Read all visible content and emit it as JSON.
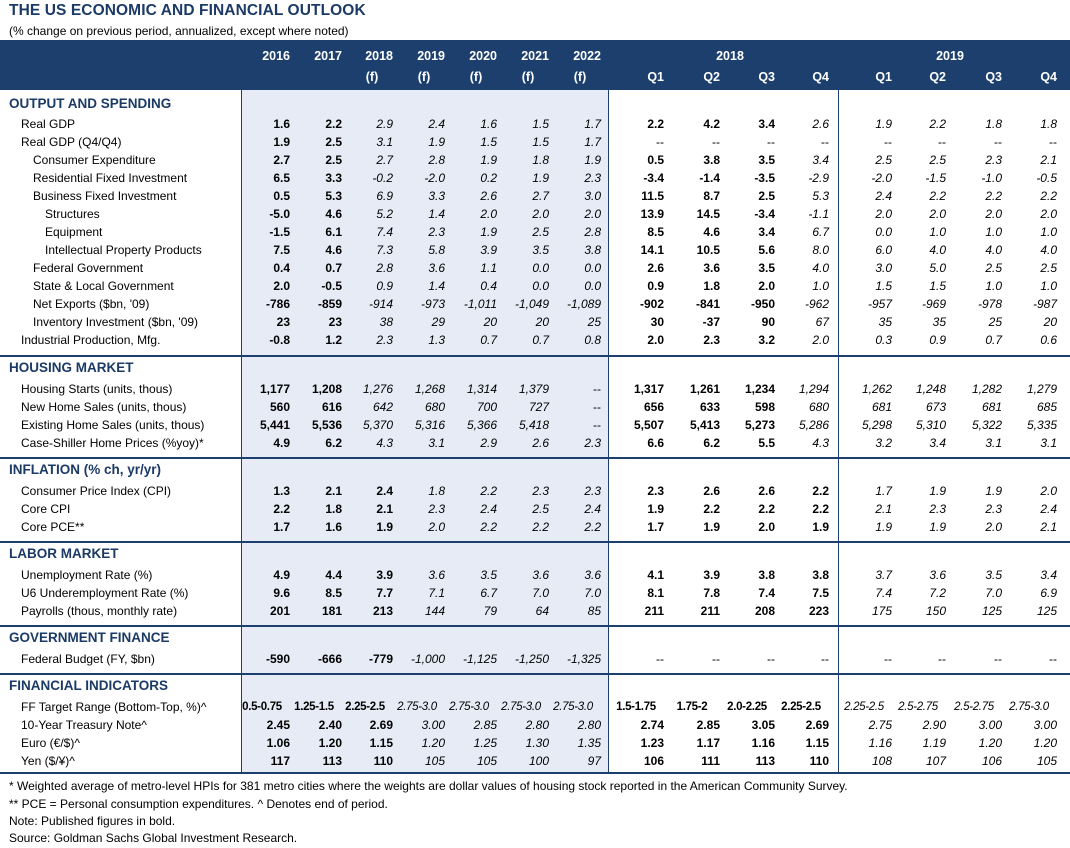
{
  "title": "THE US ECONOMIC AND FINANCIAL OUTLOOK",
  "subtitle": "(% change on previous period, annualized, except where noted)",
  "header": {
    "year_cols": [
      {
        "y": "2016",
        "f": ""
      },
      {
        "y": "2017",
        "f": ""
      },
      {
        "y": "2018",
        "f": "(f)"
      },
      {
        "y": "2019",
        "f": "(f)"
      },
      {
        "y": "2020",
        "f": "(f)"
      },
      {
        "y": "2021",
        "f": "(f)"
      },
      {
        "y": "2022",
        "f": "(f)"
      }
    ],
    "year_2018": "2018",
    "year_2019": "2019",
    "quarters": [
      "Q1",
      "Q2",
      "Q3",
      "Q4",
      "Q1",
      "Q2",
      "Q3",
      "Q4"
    ]
  },
  "sections": [
    {
      "title": "OUTPUT AND SPENDING",
      "rows": [
        {
          "label": "Real GDP",
          "indent": 1,
          "v": [
            "1.6",
            "2.2",
            "2.9",
            "2.4",
            "1.6",
            "1.5",
            "1.7",
            "2.2",
            "4.2",
            "3.4",
            "2.6",
            "1.9",
            "2.2",
            "1.8",
            "1.8"
          ]
        },
        {
          "label": "Real GDP (Q4/Q4)",
          "indent": 1,
          "v": [
            "1.9",
            "2.5",
            "3.1",
            "1.9",
            "1.5",
            "1.5",
            "1.7",
            "--",
            "--",
            "--",
            "--",
            "--",
            "--",
            "--",
            "--"
          ]
        },
        {
          "label": "Consumer Expenditure",
          "indent": 2,
          "v": [
            "2.7",
            "2.5",
            "2.7",
            "2.8",
            "1.9",
            "1.8",
            "1.9",
            "0.5",
            "3.8",
            "3.5",
            "3.4",
            "2.5",
            "2.5",
            "2.3",
            "2.1"
          ]
        },
        {
          "label": "Residential Fixed Investment",
          "indent": 2,
          "v": [
            "6.5",
            "3.3",
            "-0.2",
            "-2.0",
            "0.2",
            "1.9",
            "2.3",
            "-3.4",
            "-1.4",
            "-3.5",
            "-2.9",
            "-2.0",
            "-1.5",
            "-1.0",
            "-0.5"
          ]
        },
        {
          "label": "Business Fixed Investment",
          "indent": 2,
          "v": [
            "0.5",
            "5.3",
            "6.9",
            "3.3",
            "2.6",
            "2.7",
            "3.0",
            "11.5",
            "8.7",
            "2.5",
            "5.3",
            "2.4",
            "2.2",
            "2.2",
            "2.2"
          ]
        },
        {
          "label": "Structures",
          "indent": 3,
          "v": [
            "-5.0",
            "4.6",
            "5.2",
            "1.4",
            "2.0",
            "2.0",
            "2.0",
            "13.9",
            "14.5",
            "-3.4",
            "-1.1",
            "2.0",
            "2.0",
            "2.0",
            "2.0"
          ]
        },
        {
          "label": "Equipment",
          "indent": 3,
          "v": [
            "-1.5",
            "6.1",
            "7.4",
            "2.3",
            "1.9",
            "2.5",
            "2.8",
            "8.5",
            "4.6",
            "3.4",
            "6.7",
            "0.0",
            "1.0",
            "1.0",
            "1.0"
          ]
        },
        {
          "label": "Intellectual Property Products",
          "indent": 3,
          "v": [
            "7.5",
            "4.6",
            "7.3",
            "5.8",
            "3.9",
            "3.5",
            "3.8",
            "14.1",
            "10.5",
            "5.6",
            "8.0",
            "6.0",
            "4.0",
            "4.0",
            "4.0"
          ]
        },
        {
          "label": "Federal Government",
          "indent": 2,
          "v": [
            "0.4",
            "0.7",
            "2.8",
            "3.6",
            "1.1",
            "0.0",
            "0.0",
            "2.6",
            "3.6",
            "3.5",
            "4.0",
            "3.0",
            "5.0",
            "2.5",
            "2.5"
          ]
        },
        {
          "label": "State & Local Government",
          "indent": 2,
          "v": [
            "2.0",
            "-0.5",
            "0.9",
            "1.4",
            "0.4",
            "0.0",
            "0.0",
            "0.9",
            "1.8",
            "2.0",
            "1.0",
            "1.5",
            "1.5",
            "1.0",
            "1.0"
          ]
        },
        {
          "label": "Net Exports ($bn, '09)",
          "indent": 2,
          "v": [
            "-786",
            "-859",
            "-914",
            "-973",
            "-1,011",
            "-1,049",
            "-1,089",
            "-902",
            "-841",
            "-950",
            "-962",
            "-957",
            "-969",
            "-978",
            "-987"
          ]
        },
        {
          "label": "Inventory Investment ($bn, '09)",
          "indent": 2,
          "v": [
            "23",
            "23",
            "38",
            "29",
            "20",
            "20",
            "25",
            "30",
            "-37",
            "90",
            "67",
            "35",
            "35",
            "25",
            "20"
          ]
        },
        {
          "label": "Industrial Production, Mfg.",
          "indent": 1,
          "v": [
            "-0.8",
            "1.2",
            "2.3",
            "1.3",
            "0.7",
            "0.7",
            "0.8",
            "2.0",
            "2.3",
            "3.2",
            "2.0",
            "0.3",
            "0.9",
            "0.7",
            "0.6"
          ]
        }
      ]
    },
    {
      "title": "HOUSING MARKET",
      "rows": [
        {
          "label": "Housing Starts (units, thous)",
          "indent": 1,
          "v": [
            "1,177",
            "1,208",
            "1,276",
            "1,268",
            "1,314",
            "1,379",
            "--",
            "1,317",
            "1,261",
            "1,234",
            "1,294",
            "1,262",
            "1,248",
            "1,282",
            "1,279"
          ]
        },
        {
          "label": "New Home Sales (units, thous)",
          "indent": 1,
          "v": [
            "560",
            "616",
            "642",
            "680",
            "700",
            "727",
            "--",
            "656",
            "633",
            "598",
            "680",
            "681",
            "673",
            "681",
            "685"
          ]
        },
        {
          "label": "Existing Home Sales (units, thous)",
          "indent": 1,
          "v": [
            "5,441",
            "5,536",
            "5,370",
            "5,316",
            "5,366",
            "5,418",
            "--",
            "5,507",
            "5,413",
            "5,273",
            "5,286",
            "5,298",
            "5,310",
            "5,322",
            "5,335"
          ]
        },
        {
          "label": "Case-Shiller Home Prices (%yoy)*",
          "indent": 1,
          "v": [
            "4.9",
            "6.2",
            "4.3",
            "3.1",
            "2.9",
            "2.6",
            "2.3",
            "6.6",
            "6.2",
            "5.5",
            "4.3",
            "3.2",
            "3.4",
            "3.1",
            "3.1"
          ]
        }
      ]
    },
    {
      "title": "INFLATION (% ch, yr/yr)",
      "rows": [
        {
          "label": "Consumer Price Index (CPI)",
          "indent": 1,
          "v": [
            "1.3",
            "2.1",
            "2.4",
            "1.8",
            "2.2",
            "2.3",
            "2.3",
            "2.3",
            "2.6",
            "2.6",
            "2.2",
            "1.7",
            "1.9",
            "1.9",
            "2.0"
          ]
        },
        {
          "label": "Core CPI",
          "indent": 1,
          "v": [
            "2.2",
            "1.8",
            "2.1",
            "2.3",
            "2.4",
            "2.5",
            "2.4",
            "1.9",
            "2.2",
            "2.2",
            "2.2",
            "2.1",
            "2.3",
            "2.3",
            "2.4"
          ]
        },
        {
          "label": "Core PCE**",
          "indent": 1,
          "v": [
            "1.7",
            "1.6",
            "1.9",
            "2.0",
            "2.2",
            "2.2",
            "2.2",
            "1.7",
            "1.9",
            "2.0",
            "1.9",
            "1.9",
            "1.9",
            "2.0",
            "2.1"
          ]
        }
      ]
    },
    {
      "title": "LABOR MARKET",
      "rows": [
        {
          "label": "Unemployment Rate (%)",
          "indent": 1,
          "v": [
            "4.9",
            "4.4",
            "3.9",
            "3.6",
            "3.5",
            "3.6",
            "3.6",
            "4.1",
            "3.9",
            "3.8",
            "3.8",
            "3.7",
            "3.6",
            "3.5",
            "3.4"
          ]
        },
        {
          "label": "U6 Underemployment Rate (%)",
          "indent": 1,
          "v": [
            "9.6",
            "8.5",
            "7.7",
            "7.1",
            "6.7",
            "7.0",
            "7.0",
            "8.1",
            "7.8",
            "7.4",
            "7.5",
            "7.4",
            "7.2",
            "7.0",
            "6.9"
          ]
        },
        {
          "label": "Payrolls (thous, monthly rate)",
          "indent": 1,
          "v": [
            "201",
            "181",
            "213",
            "144",
            "79",
            "64",
            "85",
            "211",
            "211",
            "208",
            "223",
            "175",
            "150",
            "125",
            "125"
          ]
        }
      ]
    },
    {
      "title": "GOVERNMENT FINANCE",
      "rows": [
        {
          "label": "Federal Budget (FY, $bn)",
          "indent": 1,
          "v": [
            "-590",
            "-666",
            "-779",
            "-1,000",
            "-1,125",
            "-1,250",
            "-1,325",
            "--",
            "--",
            "--",
            "--",
            "--",
            "--",
            "--",
            "--"
          ]
        }
      ]
    },
    {
      "title": "FINANCIAL INDICATORS",
      "rows": [
        {
          "label": "FF Target Range (Bottom-Top, %)^",
          "indent": 1,
          "v": [
            "0.5-0.75",
            "1.25-1.5",
            "2.25-2.5",
            "2.75-3.0",
            "2.75-3.0",
            "2.75-3.0",
            "2.75-3.0",
            "1.5-1.75",
            "1.75-2",
            "2.0-2.25",
            "2.25-2.5",
            "2.25-2.5",
            "2.5-2.75",
            "2.5-2.75",
            "2.75-3.0"
          ]
        },
        {
          "label": "10-Year Treasury Note^",
          "indent": 1,
          "v": [
            "2.45",
            "2.40",
            "2.69",
            "3.00",
            "2.85",
            "2.80",
            "2.80",
            "2.74",
            "2.85",
            "3.05",
            "2.69",
            "2.75",
            "2.90",
            "3.00",
            "3.00"
          ]
        },
        {
          "label": "Euro (€/$)^",
          "indent": 1,
          "v": [
            "1.06",
            "1.20",
            "1.15",
            "1.20",
            "1.25",
            "1.30",
            "1.35",
            "1.23",
            "1.17",
            "1.16",
            "1.15",
            "1.16",
            "1.19",
            "1.20",
            "1.20"
          ]
        },
        {
          "label": "Yen ($/¥)^",
          "indent": 1,
          "v": [
            "117",
            "113",
            "110",
            "105",
            "105",
            "100",
            "97",
            "106",
            "111",
            "113",
            "110",
            "108",
            "107",
            "106",
            "105"
          ]
        }
      ]
    }
  ],
  "footnotes": [
    "* Weighted average of metro-level HPIs for 381 metro cities where the weights are dollar values of housing stock reported in the American Community Survey.",
    "** PCE = Personal consumption expenditures.  ^ Denotes end of period.",
    "Note: Published figures in bold.",
    "Source: Goldman Sachs Global Investment Research."
  ],
  "colors": {
    "header_bg": "#1c3f6e",
    "section_title": "#1b3a66",
    "shade": "#e6ebf5"
  }
}
